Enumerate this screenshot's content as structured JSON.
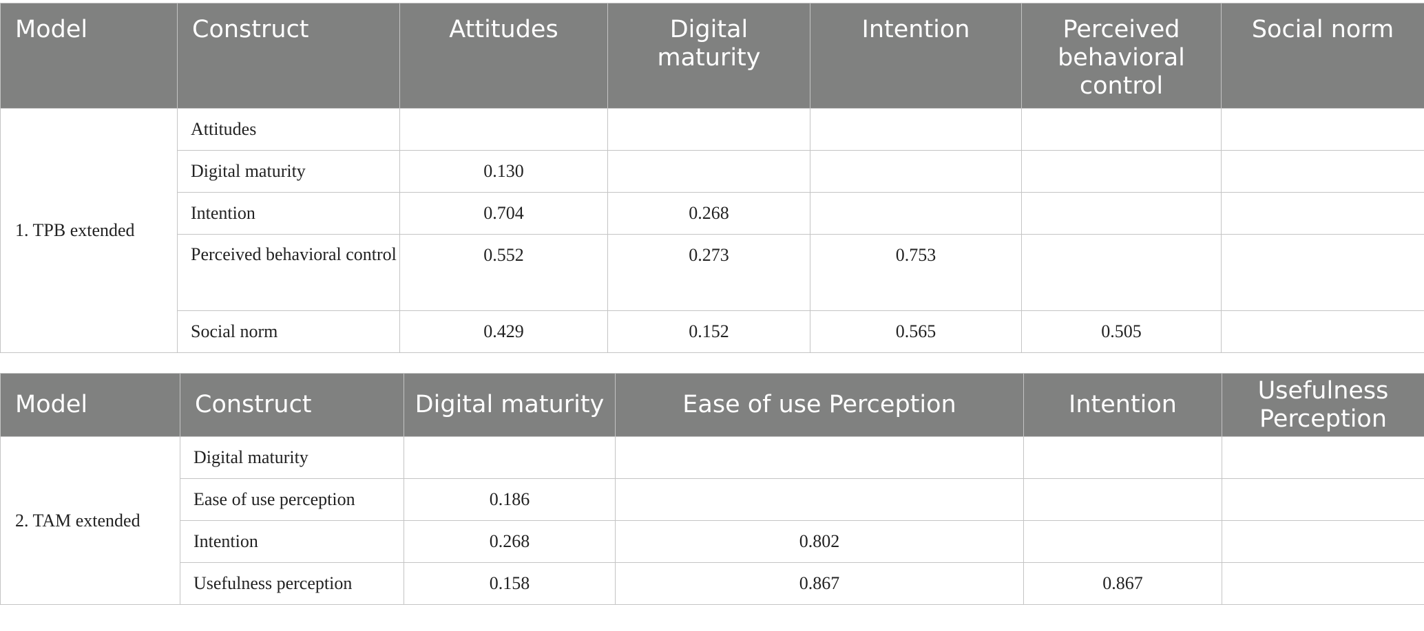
{
  "tables": [
    {
      "headers": [
        "Model",
        "Construct",
        "Attitudes",
        "Digital maturity",
        "Intention",
        "Perceived behavioral control",
        "Social norm"
      ],
      "header_lines": [
        [
          "Model"
        ],
        [
          "Construct"
        ],
        [
          "Attitudes"
        ],
        [
          "Digital",
          "maturity"
        ],
        [
          "Intention"
        ],
        [
          "Perceived",
          "behavioral",
          "control"
        ],
        [
          "Social norm"
        ]
      ],
      "model": "1. TPB extended",
      "rows": [
        {
          "construct": "Attitudes",
          "values": [
            "",
            "",
            "",
            "",
            ""
          ]
        },
        {
          "construct": "Digital maturity",
          "values": [
            "0.130",
            "",
            "",
            "",
            ""
          ]
        },
        {
          "construct": "Intention",
          "values": [
            "0.704",
            "0.268",
            "",
            "",
            ""
          ]
        },
        {
          "construct": "Perceived behavioral control",
          "values": [
            "0.552",
            "0.273",
            "0.753",
            "",
            ""
          ]
        },
        {
          "construct": "Social norm",
          "values": [
            "0.429",
            "0.152",
            "0.565",
            "0.505",
            ""
          ]
        }
      ]
    },
    {
      "headers": [
        "Model",
        "Construct",
        "Digital maturity",
        "Ease of use Perception",
        "Intention",
        "Usefulness Perception"
      ],
      "header_lines": [
        [
          "Model"
        ],
        [
          "Construct"
        ],
        [
          "Digital maturity"
        ],
        [
          "Ease of use Perception"
        ],
        [
          "Intention"
        ],
        [
          "Usefulness",
          "Perception"
        ]
      ],
      "model": "2. TAM extended",
      "rows": [
        {
          "construct": "Digital maturity",
          "values": [
            "",
            "",
            "",
            ""
          ]
        },
        {
          "construct": "Ease of use perception",
          "values": [
            "0.186",
            "",
            "",
            ""
          ]
        },
        {
          "construct": "Intention",
          "values": [
            "0.268",
            "0.802",
            "",
            ""
          ]
        },
        {
          "construct": "Usefulness perception",
          "values": [
            "0.158",
            "0.867",
            "0.867",
            ""
          ]
        }
      ]
    }
  ]
}
